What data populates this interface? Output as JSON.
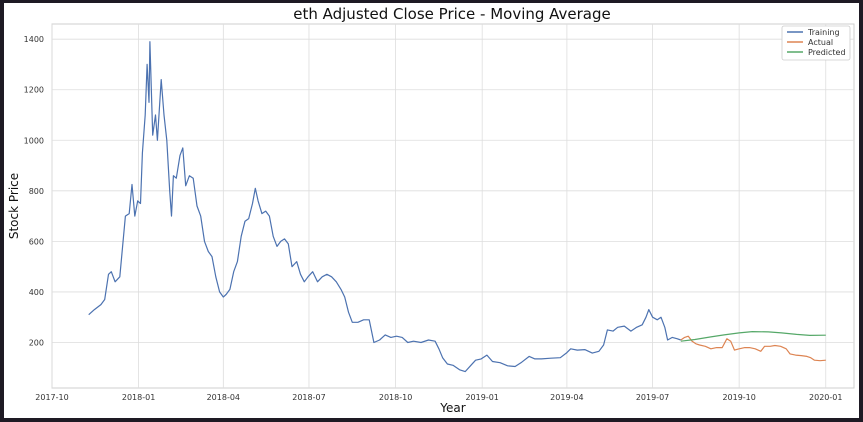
{
  "chart_data": {
    "type": "line",
    "title": "eth Adjusted Close Price - Moving Average",
    "xlabel": "Year",
    "ylabel": "Stock Price",
    "ylim": [
      20,
      1460
    ],
    "xlim": [
      "2017-10-01",
      "2020-01-31"
    ],
    "x_ticks": [
      "2017-10",
      "2018-01",
      "2018-04",
      "2018-07",
      "2018-10",
      "2019-01",
      "2019-04",
      "2019-07",
      "2019-10",
      "2020-01"
    ],
    "y_ticks": [
      200,
      400,
      600,
      800,
      1000,
      1200,
      1400
    ],
    "grid": true,
    "legend_position": "top-right",
    "series": [
      {
        "name": "Training",
        "color": "#4c72b0",
        "points": [
          [
            "2017-11-09",
            310
          ],
          [
            "2017-11-15",
            330
          ],
          [
            "2017-11-22",
            350
          ],
          [
            "2017-11-26",
            370
          ],
          [
            "2017-11-30",
            470
          ],
          [
            "2017-12-03",
            480
          ],
          [
            "2017-12-07",
            440
          ],
          [
            "2017-12-12",
            460
          ],
          [
            "2017-12-18",
            700
          ],
          [
            "2017-12-22",
            710
          ],
          [
            "2017-12-25",
            825
          ],
          [
            "2017-12-28",
            700
          ],
          [
            "2017-12-31",
            760
          ],
          [
            "2018-01-03",
            750
          ],
          [
            "2018-01-05",
            950
          ],
          [
            "2018-01-08",
            1100
          ],
          [
            "2018-01-10",
            1300
          ],
          [
            "2018-01-12",
            1150
          ],
          [
            "2018-01-13",
            1390
          ],
          [
            "2018-01-16",
            1020
          ],
          [
            "2018-01-19",
            1100
          ],
          [
            "2018-01-21",
            1000
          ],
          [
            "2018-01-25",
            1240
          ],
          [
            "2018-01-28",
            1100
          ],
          [
            "2018-01-31",
            1000
          ],
          [
            "2018-02-03",
            800
          ],
          [
            "2018-02-05",
            700
          ],
          [
            "2018-02-07",
            860
          ],
          [
            "2018-02-10",
            850
          ],
          [
            "2018-02-14",
            940
          ],
          [
            "2018-02-17",
            970
          ],
          [
            "2018-02-20",
            820
          ],
          [
            "2018-02-24",
            860
          ],
          [
            "2018-02-28",
            850
          ],
          [
            "2018-03-04",
            740
          ],
          [
            "2018-03-08",
            700
          ],
          [
            "2018-03-12",
            600
          ],
          [
            "2018-03-16",
            560
          ],
          [
            "2018-03-20",
            540
          ],
          [
            "2018-03-24",
            460
          ],
          [
            "2018-03-28",
            400
          ],
          [
            "2018-04-01",
            380
          ],
          [
            "2018-04-04",
            390
          ],
          [
            "2018-04-08",
            410
          ],
          [
            "2018-04-12",
            480
          ],
          [
            "2018-04-16",
            520
          ],
          [
            "2018-04-20",
            620
          ],
          [
            "2018-04-24",
            680
          ],
          [
            "2018-04-28",
            690
          ],
          [
            "2018-05-02",
            750
          ],
          [
            "2018-05-05",
            810
          ],
          [
            "2018-05-08",
            760
          ],
          [
            "2018-05-12",
            710
          ],
          [
            "2018-05-16",
            720
          ],
          [
            "2018-05-20",
            700
          ],
          [
            "2018-05-24",
            620
          ],
          [
            "2018-05-28",
            580
          ],
          [
            "2018-06-01",
            600
          ],
          [
            "2018-06-05",
            610
          ],
          [
            "2018-06-09",
            590
          ],
          [
            "2018-06-13",
            500
          ],
          [
            "2018-06-18",
            520
          ],
          [
            "2018-06-22",
            470
          ],
          [
            "2018-06-26",
            440
          ],
          [
            "2018-06-30",
            460
          ],
          [
            "2018-07-05",
            480
          ],
          [
            "2018-07-10",
            440
          ],
          [
            "2018-07-15",
            460
          ],
          [
            "2018-07-20",
            470
          ],
          [
            "2018-07-25",
            460
          ],
          [
            "2018-07-30",
            440
          ],
          [
            "2018-08-04",
            410
          ],
          [
            "2018-08-08",
            380
          ],
          [
            "2018-08-12",
            320
          ],
          [
            "2018-08-16",
            280
          ],
          [
            "2018-08-22",
            280
          ],
          [
            "2018-08-28",
            290
          ],
          [
            "2018-09-03",
            290
          ],
          [
            "2018-09-08",
            200
          ],
          [
            "2018-09-14",
            210
          ],
          [
            "2018-09-20",
            230
          ],
          [
            "2018-09-26",
            220
          ],
          [
            "2018-10-02",
            225
          ],
          [
            "2018-10-08",
            220
          ],
          [
            "2018-10-14",
            200
          ],
          [
            "2018-10-20",
            205
          ],
          [
            "2018-10-28",
            200
          ],
          [
            "2018-11-05",
            210
          ],
          [
            "2018-11-12",
            205
          ],
          [
            "2018-11-16",
            175
          ],
          [
            "2018-11-20",
            140
          ],
          [
            "2018-11-25",
            115
          ],
          [
            "2018-12-01",
            110
          ],
          [
            "2018-12-08",
            92
          ],
          [
            "2018-12-14",
            85
          ],
          [
            "2018-12-20",
            110
          ],
          [
            "2018-12-25",
            130
          ],
          [
            "2018-12-31",
            135
          ],
          [
            "2019-01-06",
            150
          ],
          [
            "2019-01-12",
            125
          ],
          [
            "2019-01-20",
            120
          ],
          [
            "2019-01-28",
            108
          ],
          [
            "2019-02-05",
            105
          ],
          [
            "2019-02-12",
            122
          ],
          [
            "2019-02-20",
            145
          ],
          [
            "2019-02-26",
            135
          ],
          [
            "2019-03-05",
            135
          ],
          [
            "2019-03-15",
            138
          ],
          [
            "2019-03-25",
            140
          ],
          [
            "2019-04-01",
            160
          ],
          [
            "2019-04-05",
            175
          ],
          [
            "2019-04-12",
            170
          ],
          [
            "2019-04-20",
            172
          ],
          [
            "2019-04-28",
            158
          ],
          [
            "2019-05-05",
            165
          ],
          [
            "2019-05-10",
            190
          ],
          [
            "2019-05-14",
            250
          ],
          [
            "2019-05-20",
            245
          ],
          [
            "2019-05-25",
            260
          ],
          [
            "2019-06-01",
            265
          ],
          [
            "2019-06-08",
            245
          ],
          [
            "2019-06-14",
            260
          ],
          [
            "2019-06-20",
            270
          ],
          [
            "2019-06-24",
            300
          ],
          [
            "2019-06-27",
            330
          ],
          [
            "2019-07-01",
            300
          ],
          [
            "2019-07-06",
            290
          ],
          [
            "2019-07-10",
            300
          ],
          [
            "2019-07-14",
            260
          ],
          [
            "2019-07-17",
            210
          ],
          [
            "2019-07-22",
            220
          ],
          [
            "2019-07-27",
            215
          ],
          [
            "2019-07-31",
            210
          ]
        ]
      },
      {
        "name": "Actual",
        "color": "#dd8452",
        "points": [
          [
            "2019-07-31",
            210
          ],
          [
            "2019-08-04",
            220
          ],
          [
            "2019-08-08",
            225
          ],
          [
            "2019-08-12",
            205
          ],
          [
            "2019-08-16",
            195
          ],
          [
            "2019-08-20",
            190
          ],
          [
            "2019-08-26",
            185
          ],
          [
            "2019-09-01",
            175
          ],
          [
            "2019-09-07",
            180
          ],
          [
            "2019-09-13",
            180
          ],
          [
            "2019-09-18",
            215
          ],
          [
            "2019-09-22",
            205
          ],
          [
            "2019-09-26",
            170
          ],
          [
            "2019-10-01",
            175
          ],
          [
            "2019-10-07",
            180
          ],
          [
            "2019-10-12",
            180
          ],
          [
            "2019-10-18",
            175
          ],
          [
            "2019-10-24",
            165
          ],
          [
            "2019-10-28",
            185
          ],
          [
            "2019-11-03",
            185
          ],
          [
            "2019-11-08",
            188
          ],
          [
            "2019-11-14",
            185
          ],
          [
            "2019-11-20",
            175
          ],
          [
            "2019-11-24",
            155
          ],
          [
            "2019-11-30",
            150
          ],
          [
            "2019-12-06",
            148
          ],
          [
            "2019-12-12",
            145
          ],
          [
            "2019-12-16",
            140
          ],
          [
            "2019-12-20",
            130
          ],
          [
            "2019-12-26",
            128
          ],
          [
            "2020-01-01",
            130
          ]
        ]
      },
      {
        "name": "Predicted",
        "color": "#55a868",
        "points": [
          [
            "2019-07-31",
            205
          ],
          [
            "2019-08-15",
            212
          ],
          [
            "2019-09-01",
            222
          ],
          [
            "2019-09-15",
            230
          ],
          [
            "2019-10-01",
            238
          ],
          [
            "2019-10-15",
            243
          ],
          [
            "2019-11-01",
            242
          ],
          [
            "2019-11-15",
            238
          ],
          [
            "2019-12-01",
            232
          ],
          [
            "2019-12-15",
            228
          ],
          [
            "2020-01-01",
            229
          ]
        ]
      }
    ]
  }
}
